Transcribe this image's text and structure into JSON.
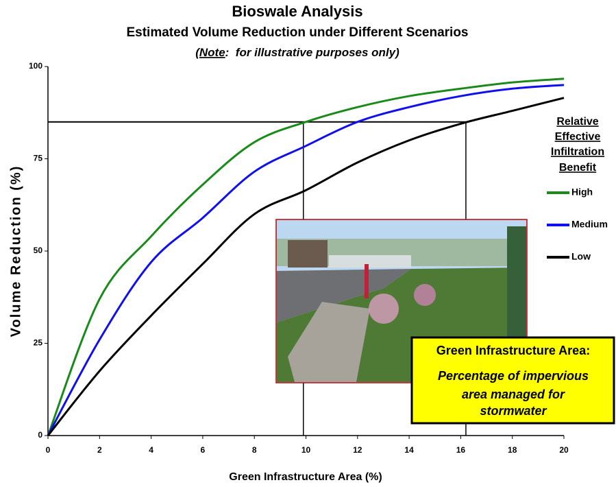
{
  "chart_data": {
    "type": "line",
    "title": "Bioswale Analysis",
    "subtitle": "Estimated Volume Reduction under Different Scenarios",
    "note": {
      "open": "(",
      "emphasis": "Note",
      "rest": ":  for illustrative purposes only)"
    },
    "x_label": "Green Infrastructure Area (%)",
    "y_label": "Volume Reduction  (%)",
    "x": [
      0,
      2,
      4,
      6,
      8,
      10,
      12,
      14,
      16,
      18,
      20
    ],
    "series": [
      {
        "name": "High",
        "color": "#1a8a1a",
        "values": [
          0,
          37,
          54,
          68,
          79.5,
          85,
          89,
          92,
          94,
          95.7,
          96.7
        ]
      },
      {
        "name": "Medium",
        "color": "#1010ee",
        "values": [
          0,
          26,
          47,
          59,
          71.5,
          78.5,
          85,
          89,
          92,
          94,
          95
        ]
      },
      {
        "name": "Low",
        "color": "#000000",
        "values": [
          0,
          17.5,
          32.5,
          46.5,
          60,
          66.5,
          74,
          80,
          84.5,
          88,
          91.5
        ]
      }
    ],
    "reference_y": 85,
    "reference_x": [
      9.9,
      16.2
    ],
    "xlim": [
      0,
      20
    ],
    "xticks": [
      0,
      2,
      4,
      6,
      8,
      10,
      12,
      14,
      16,
      18,
      20
    ],
    "ylim": [
      0,
      100
    ],
    "yticks": [
      0,
      25,
      50,
      75,
      100
    ],
    "grid": false,
    "legend_title": [
      "Relative",
      "Effective",
      "Infiltration",
      "Benefit"
    ],
    "annotation": {
      "title": "Green Infrastructure Area:",
      "lines": [
        "Percentage of impervious",
        "area managed for",
        "stormwater"
      ]
    }
  }
}
